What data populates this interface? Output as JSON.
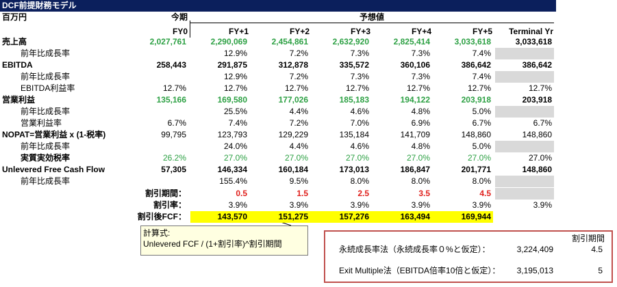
{
  "header": {
    "title": "DCF前提財務モデル",
    "unit": "百万円",
    "current": "今期",
    "forecast": "予想値",
    "columns": [
      "FY0",
      "FY+1",
      "FY+2",
      "FY+3",
      "FY+4",
      "FY+5",
      "Terminal Yr"
    ]
  },
  "table": {
    "rows": [
      {
        "label": "売上高",
        "cells": [
          "2,027,761",
          "2,290,069",
          "2,454,861",
          "2,632,920",
          "2,825,414",
          "3,033,618",
          "3,033,618"
        ]
      },
      {
        "label": "前年比成長率",
        "cells": [
          null,
          "12.9%",
          "7.2%",
          "7.3%",
          "7.3%",
          "7.4%",
          null
        ]
      },
      {
        "label": "EBITDA",
        "cells": [
          "258,443",
          "291,875",
          "312,878",
          "335,572",
          "360,106",
          "386,642",
          "386,642"
        ]
      },
      {
        "label": "前年比成長率",
        "cells": [
          null,
          "12.9%",
          "7.2%",
          "7.3%",
          "7.3%",
          "7.4%",
          null
        ]
      },
      {
        "label": "EBITDA利益率",
        "cells": [
          "12.7%",
          "12.7%",
          "12.7%",
          "12.7%",
          "12.7%",
          "12.7%",
          "12.7%"
        ]
      },
      {
        "label": "営業利益",
        "cells": [
          "135,166",
          "169,580",
          "177,026",
          "185,183",
          "194,122",
          "203,918",
          "203,918"
        ]
      },
      {
        "label": "前年比成長率",
        "cells": [
          null,
          "25.5%",
          "4.4%",
          "4.6%",
          "4.8%",
          "5.0%",
          null
        ]
      },
      {
        "label": "営業利益率",
        "cells": [
          "6.7%",
          "7.4%",
          "7.2%",
          "7.0%",
          "6.9%",
          "6.7%",
          "6.7%"
        ]
      },
      {
        "label": "NOPAT=営業利益 x (1-税率)",
        "cells": [
          "99,795",
          "123,793",
          "129,229",
          "135,184",
          "141,709",
          "148,860",
          "148,860"
        ]
      },
      {
        "label": "前年比成長率",
        "cells": [
          null,
          "24.0%",
          "4.4%",
          "4.6%",
          "4.8%",
          "5.0%",
          null
        ]
      },
      {
        "label": "実質実効税率",
        "cells": [
          "26.2%",
          "27.0%",
          "27.0%",
          "27.0%",
          "27.0%",
          "27.0%",
          "27.0%"
        ]
      },
      {
        "label": "Unlevered Free Cash Flow",
        "cells": [
          "57,305",
          "146,334",
          "160,184",
          "173,013",
          "186,847",
          "201,771",
          "148,860"
        ]
      },
      {
        "label": "前年比成長率",
        "cells": [
          null,
          "155.4%",
          "9.5%",
          "8.0%",
          "8.0%",
          "8.0%",
          null
        ]
      }
    ]
  },
  "discount": {
    "rows": [
      {
        "label": "割引期間：",
        "cells": [
          null,
          "0.5",
          "1.5",
          "2.5",
          "3.5",
          "4.5",
          null
        ]
      },
      {
        "label": "割引率：",
        "cells": [
          null,
          "3.9%",
          "3.9%",
          "3.9%",
          "3.9%",
          "3.9%",
          "3.9%"
        ]
      },
      {
        "label": "割引後FCF：",
        "cells": [
          null,
          "143,570",
          "151,275",
          "157,276",
          "163,494",
          "169,944",
          null
        ]
      }
    ]
  },
  "callout": {
    "title": "計算式:",
    "formula": "Unlevered FCF / (1+割引率)^割引期間"
  },
  "terminal_box": {
    "header": "割引期間",
    "rows": [
      {
        "label": "永続成長率法（永続成長率０%と仮定）：",
        "value": "3,224,409",
        "period": "4.5"
      },
      {
        "label": "Exit Multiple法（EBITDA倍率10倍と仮定）：",
        "value": "3,195,013",
        "period": "5"
      }
    ]
  }
}
